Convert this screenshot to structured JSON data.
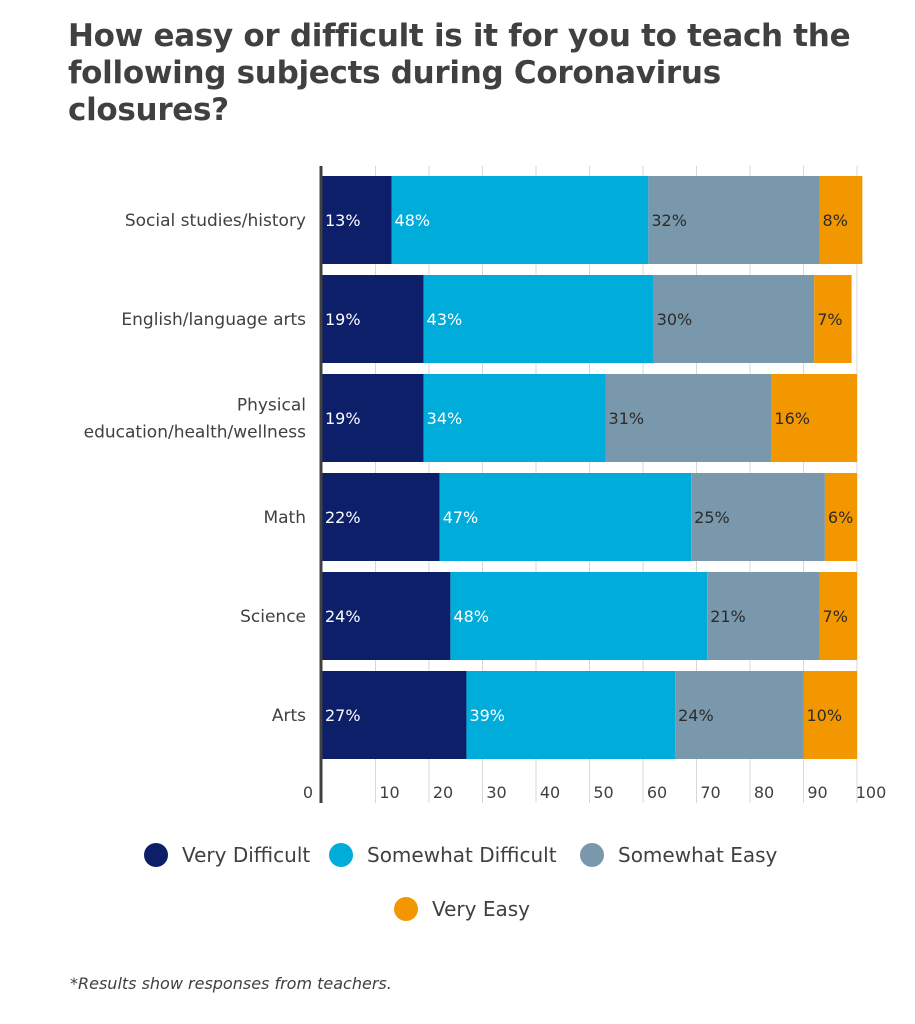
{
  "chart_data": {
    "type": "bar",
    "orientation": "horizontal",
    "stacked": true,
    "title": "How easy or difficult is it for you to teach the following subjects during Coronavirus closures?",
    "categories": [
      [
        "Social studies/history"
      ],
      [
        "English/language arts"
      ],
      [
        "Physical",
        "education/health/wellness"
      ],
      [
        "Math"
      ],
      [
        "Science"
      ],
      [
        "Arts"
      ]
    ],
    "series": [
      {
        "name": "Very Difficult",
        "color": "#0c1f68",
        "label_color": "#ffffff",
        "values": [
          13,
          19,
          19,
          22,
          24,
          27
        ]
      },
      {
        "name": "Somewhat Difficult",
        "color": "#00acd9",
        "label_color": "#ffffff",
        "values": [
          48,
          43,
          34,
          47,
          48,
          39
        ]
      },
      {
        "name": "Somewhat Easy",
        "color": "#7a98ab",
        "label_color": "#2b2b2b",
        "values": [
          32,
          30,
          31,
          25,
          21,
          24
        ]
      },
      {
        "name": "Very Easy",
        "color": "#f39700",
        "label_color": "#2b2b2b",
        "values": [
          8,
          7,
          16,
          6,
          7,
          10
        ]
      }
    ],
    "value_suffix": "%",
    "xlim": [
      0,
      100
    ],
    "xticks": [
      0,
      10,
      20,
      30,
      40,
      50,
      60,
      70,
      80,
      90,
      100
    ],
    "grid": true,
    "legend_position": "bottom",
    "footnote": "*Results show responses from teachers."
  }
}
